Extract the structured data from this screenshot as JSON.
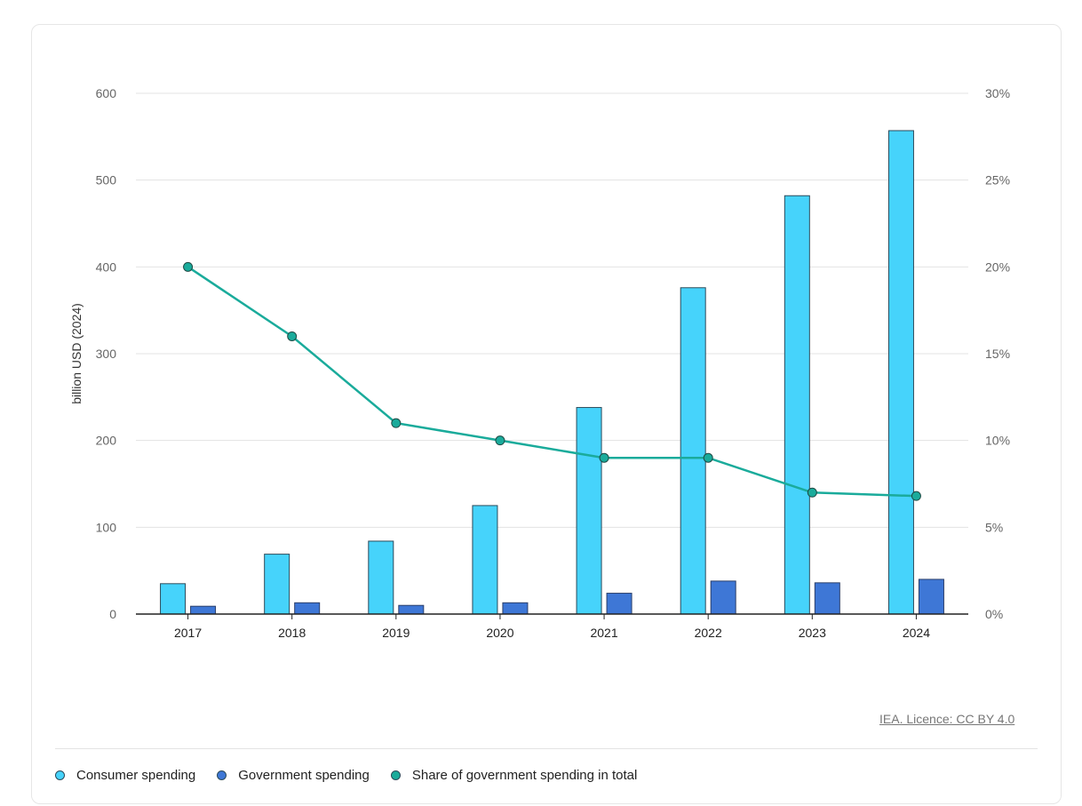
{
  "colors": {
    "consumer": "#46d3fb",
    "government": "#3e77d6",
    "share": "#1aab9b",
    "grid": "#e3e3e3",
    "axis": "#222222",
    "tick_text": "#666666"
  },
  "chart_data": {
    "type": "bar",
    "categories": [
      "2017",
      "2018",
      "2019",
      "2020",
      "2021",
      "2022",
      "2023",
      "2024"
    ],
    "series": [
      {
        "name": "Consumer spending",
        "type": "bar",
        "axis": "left",
        "values": [
          35,
          69,
          84,
          125,
          238,
          376,
          482,
          557
        ]
      },
      {
        "name": "Government spending",
        "type": "bar",
        "axis": "left",
        "values": [
          9,
          13,
          10,
          13,
          24,
          38,
          36,
          40
        ]
      },
      {
        "name": "Share of government spending in total",
        "type": "line",
        "axis": "right",
        "values": [
          20,
          16,
          11,
          10,
          9,
          9,
          7,
          6.8
        ]
      }
    ],
    "ylabel": "billion USD (2024)",
    "ylim": [
      0,
      600
    ],
    "yticks": [
      "0",
      "100",
      "200",
      "300",
      "400",
      "500",
      "600"
    ],
    "y2lim": [
      0,
      30
    ],
    "y2ticks": [
      "0%",
      "5%",
      "10%",
      "15%",
      "20%",
      "25%",
      "30%"
    ],
    "grid": true,
    "legend_position": "bottom-left"
  },
  "legend": [
    {
      "label": "Consumer spending",
      "color_key": "consumer"
    },
    {
      "label": "Government spending",
      "color_key": "government"
    },
    {
      "label": "Share of government spending in total",
      "color_key": "share"
    }
  ],
  "credit": "IEA. Licence: CC BY 4.0"
}
